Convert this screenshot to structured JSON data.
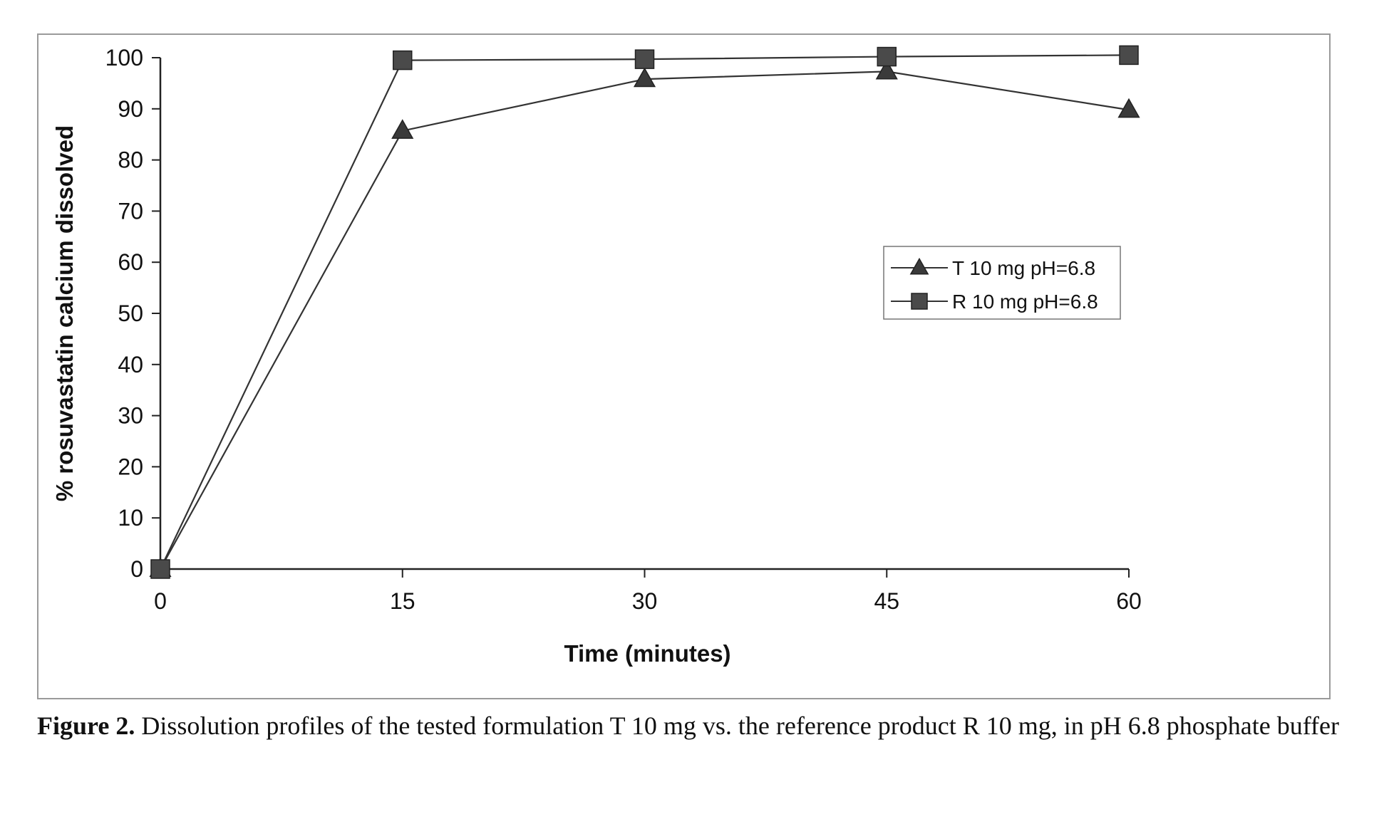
{
  "chart_data": {
    "type": "line",
    "xlabel": "Time (minutes)",
    "ylabel": "% rosuvastatin calcium dissolved",
    "x": [
      0,
      15,
      30,
      45,
      60
    ],
    "x_ticks": [
      "0",
      "15",
      "30",
      "45",
      "60"
    ],
    "ylim": [
      0,
      100
    ],
    "y_ticks": [
      "0",
      "10",
      "20",
      "30",
      "40",
      "50",
      "60",
      "70",
      "80",
      "90",
      "100"
    ],
    "grid": false,
    "legend_position": "center-right",
    "series": [
      {
        "name": "T 10 mg pH=6.8",
        "marker": "triangle",
        "color": "#3a3a3a",
        "values": [
          0,
          85.7,
          95.8,
          97.3,
          89.8
        ]
      },
      {
        "name": "R 10 mg pH=6.8",
        "marker": "square",
        "color": "#4a4a4a",
        "values": [
          0,
          99.5,
          99.7,
          100.2,
          100.5
        ]
      }
    ]
  },
  "caption": {
    "label": "Figure 2.",
    "text": " Dissolution profiles of the tested formulation T 10 mg vs. the reference product R 10 mg, in pH 6.8 phosphate buffer"
  }
}
